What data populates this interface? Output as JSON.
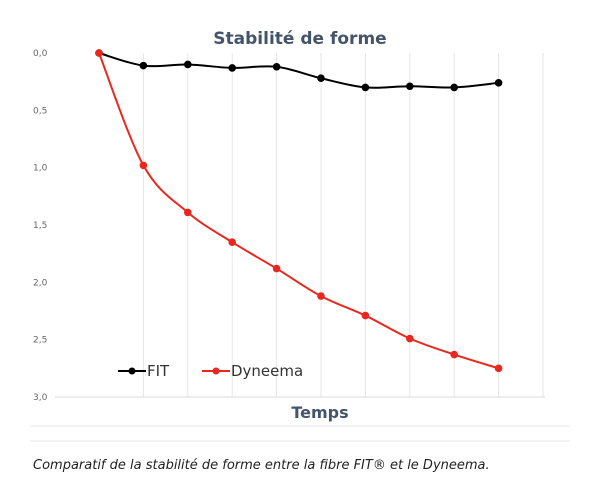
{
  "chart_data": {
    "type": "line",
    "title": "Stabilité de forme",
    "xlabel": "Temps",
    "ylabel": "",
    "ylim": [
      0,
      3
    ],
    "y_inverted": true,
    "y_ticks": [
      "0,0",
      "0,5",
      "1,0",
      "1,5",
      "2,0",
      "2,5",
      "3,0"
    ],
    "x": [
      0,
      1,
      2,
      3,
      4,
      5,
      6,
      7,
      8,
      9
    ],
    "grid": "vertical",
    "legend": "bottom-left",
    "series": [
      {
        "name": "FIT",
        "color": "#000000",
        "values": [
          0.0,
          0.11,
          0.1,
          0.13,
          0.12,
          0.22,
          0.3,
          0.29,
          0.3,
          0.26
        ]
      },
      {
        "name": "Dyneema",
        "color": "#e8281e",
        "values": [
          0.0,
          0.98,
          1.39,
          1.65,
          1.88,
          2.12,
          2.29,
          2.49,
          2.63,
          2.75
        ]
      }
    ]
  },
  "caption": "Comparatif de la stabilité de forme entre la fibre FIT® et le Dyneema."
}
